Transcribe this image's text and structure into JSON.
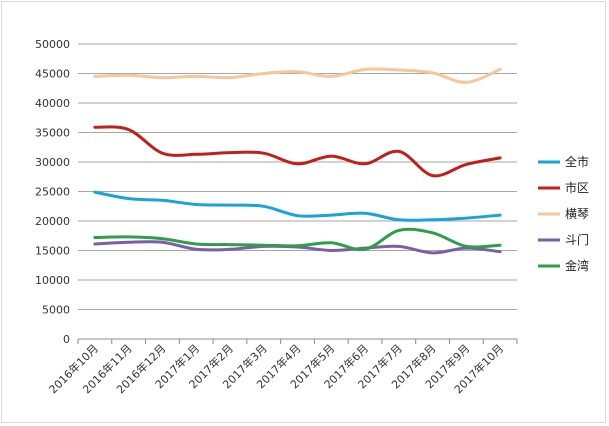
{
  "chart_data": {
    "type": "line",
    "title": "",
    "xlabel": "",
    "ylabel": "",
    "ylim": [
      0,
      50000
    ],
    "ytick_step": 5000,
    "grid": true,
    "legend_position": "right",
    "categories": [
      "2016年10月",
      "2016年11月",
      "2016年12月",
      "2017年1月",
      "2017年2月",
      "2017年3月",
      "2017年4月",
      "2017年5月",
      "2017年6月",
      "2017年7月",
      "2017年8月",
      "2017年9月",
      "2017年10月"
    ],
    "yticks": [
      "0",
      "5000",
      "10000",
      "15000",
      "20000",
      "25000",
      "30000",
      "35000",
      "40000",
      "45000",
      "50000"
    ],
    "series": [
      {
        "name": "全市",
        "color": "#1aa3d6",
        "values": [
          24900,
          23800,
          23500,
          22800,
          22700,
          22500,
          20900,
          21000,
          21300,
          20200,
          20200,
          20500,
          21000
        ]
      },
      {
        "name": "市区",
        "color": "#c0201b",
        "values": [
          35900,
          35500,
          31500,
          31300,
          31600,
          31500,
          29700,
          31000,
          29700,
          31800,
          27700,
          29600,
          30700
        ]
      },
      {
        "name": "横琴",
        "color": "#f5c79a",
        "values": [
          44500,
          44700,
          44300,
          44500,
          44300,
          45000,
          45300,
          44500,
          45700,
          45600,
          45100,
          43500,
          45700
        ]
      },
      {
        "name": "斗门",
        "color": "#7b5ea7",
        "values": [
          16100,
          16400,
          16400,
          15200,
          15200,
          15700,
          15600,
          15000,
          15400,
          15700,
          14600,
          15400,
          14800
        ]
      },
      {
        "name": "金湾",
        "color": "#2e9e4a",
        "values": [
          17200,
          17300,
          17000,
          16100,
          16000,
          15900,
          15800,
          16300,
          15200,
          18400,
          18000,
          15700,
          15900
        ]
      }
    ]
  }
}
